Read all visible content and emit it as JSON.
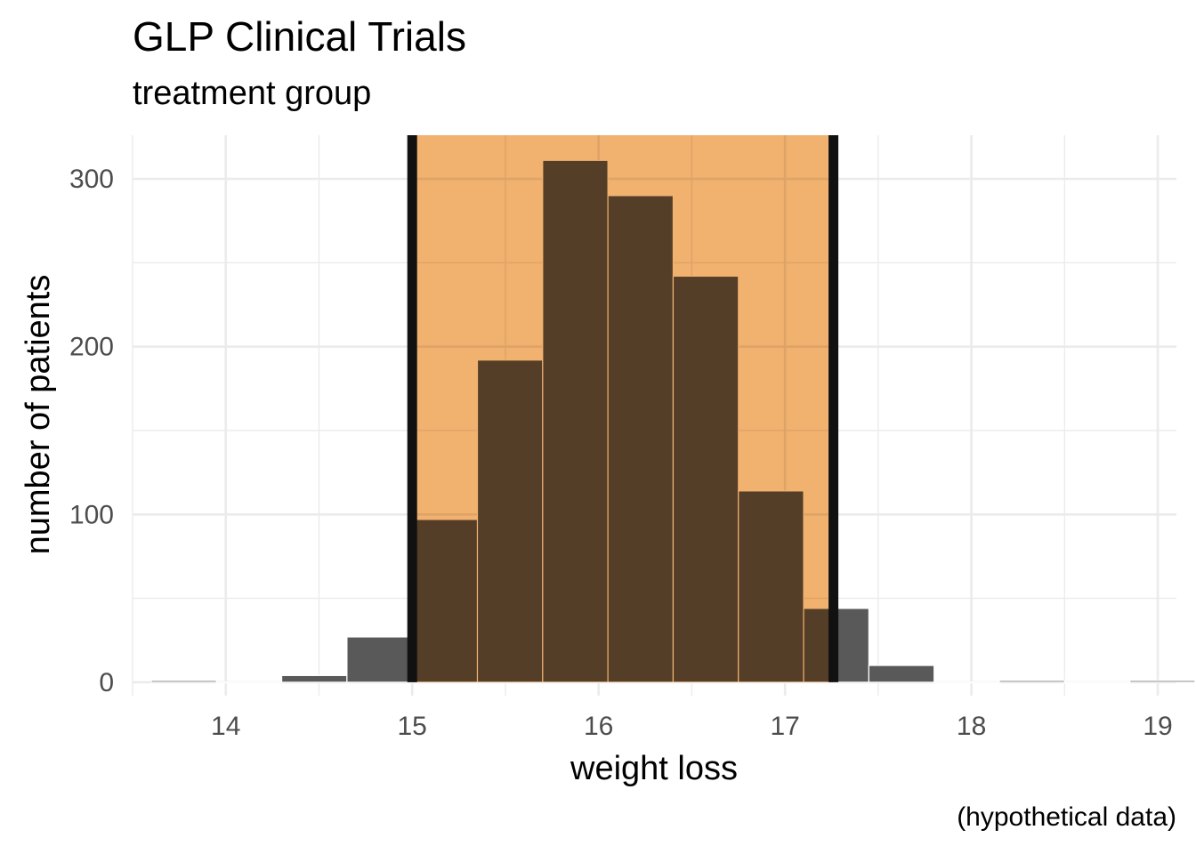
{
  "chart_data": {
    "type": "bar",
    "title": "GLP Clinical Trials",
    "subtitle": "treatment group",
    "caption": "(hypothetical data)",
    "xlabel": "weight loss",
    "ylabel": "number of patients",
    "xlim": [
      13.5,
      19.1
    ],
    "ylim": [
      -8,
      326
    ],
    "x_ticks": [
      14,
      15,
      16,
      17,
      18,
      19
    ],
    "y_ticks": [
      0,
      100,
      200,
      300
    ],
    "bin_width": 0.35,
    "bins": [
      {
        "start": 13.6,
        "end": 13.95,
        "count": 1
      },
      {
        "start": 13.95,
        "end": 14.3,
        "count": 0
      },
      {
        "start": 14.3,
        "end": 14.65,
        "count": 4
      },
      {
        "start": 14.65,
        "end": 15.0,
        "count": 27
      },
      {
        "start": 15.0,
        "end": 15.35,
        "count": 97
      },
      {
        "start": 15.35,
        "end": 15.7,
        "count": 192
      },
      {
        "start": 15.7,
        "end": 16.05,
        "count": 311
      },
      {
        "start": 16.05,
        "end": 16.4,
        "count": 290
      },
      {
        "start": 16.4,
        "end": 16.75,
        "count": 242
      },
      {
        "start": 16.75,
        "end": 17.1,
        "count": 114
      },
      {
        "start": 17.1,
        "end": 17.45,
        "count": 44
      },
      {
        "start": 17.45,
        "end": 17.8,
        "count": 10
      },
      {
        "start": 17.8,
        "end": 18.15,
        "count": 0
      },
      {
        "start": 18.15,
        "end": 18.5,
        "count": 1
      },
      {
        "start": 18.5,
        "end": 18.85,
        "count": 0
      },
      {
        "start": 18.85,
        "end": 19.2,
        "count": 1
      }
    ],
    "highlight_range": [
      15.0,
      17.26
    ],
    "colors": {
      "bar": "#595959",
      "highlight_fill": "#f0a95f",
      "boundary_line": "#111111",
      "bar_outline": "#ffffff"
    },
    "grid": true,
    "legend": "none"
  }
}
